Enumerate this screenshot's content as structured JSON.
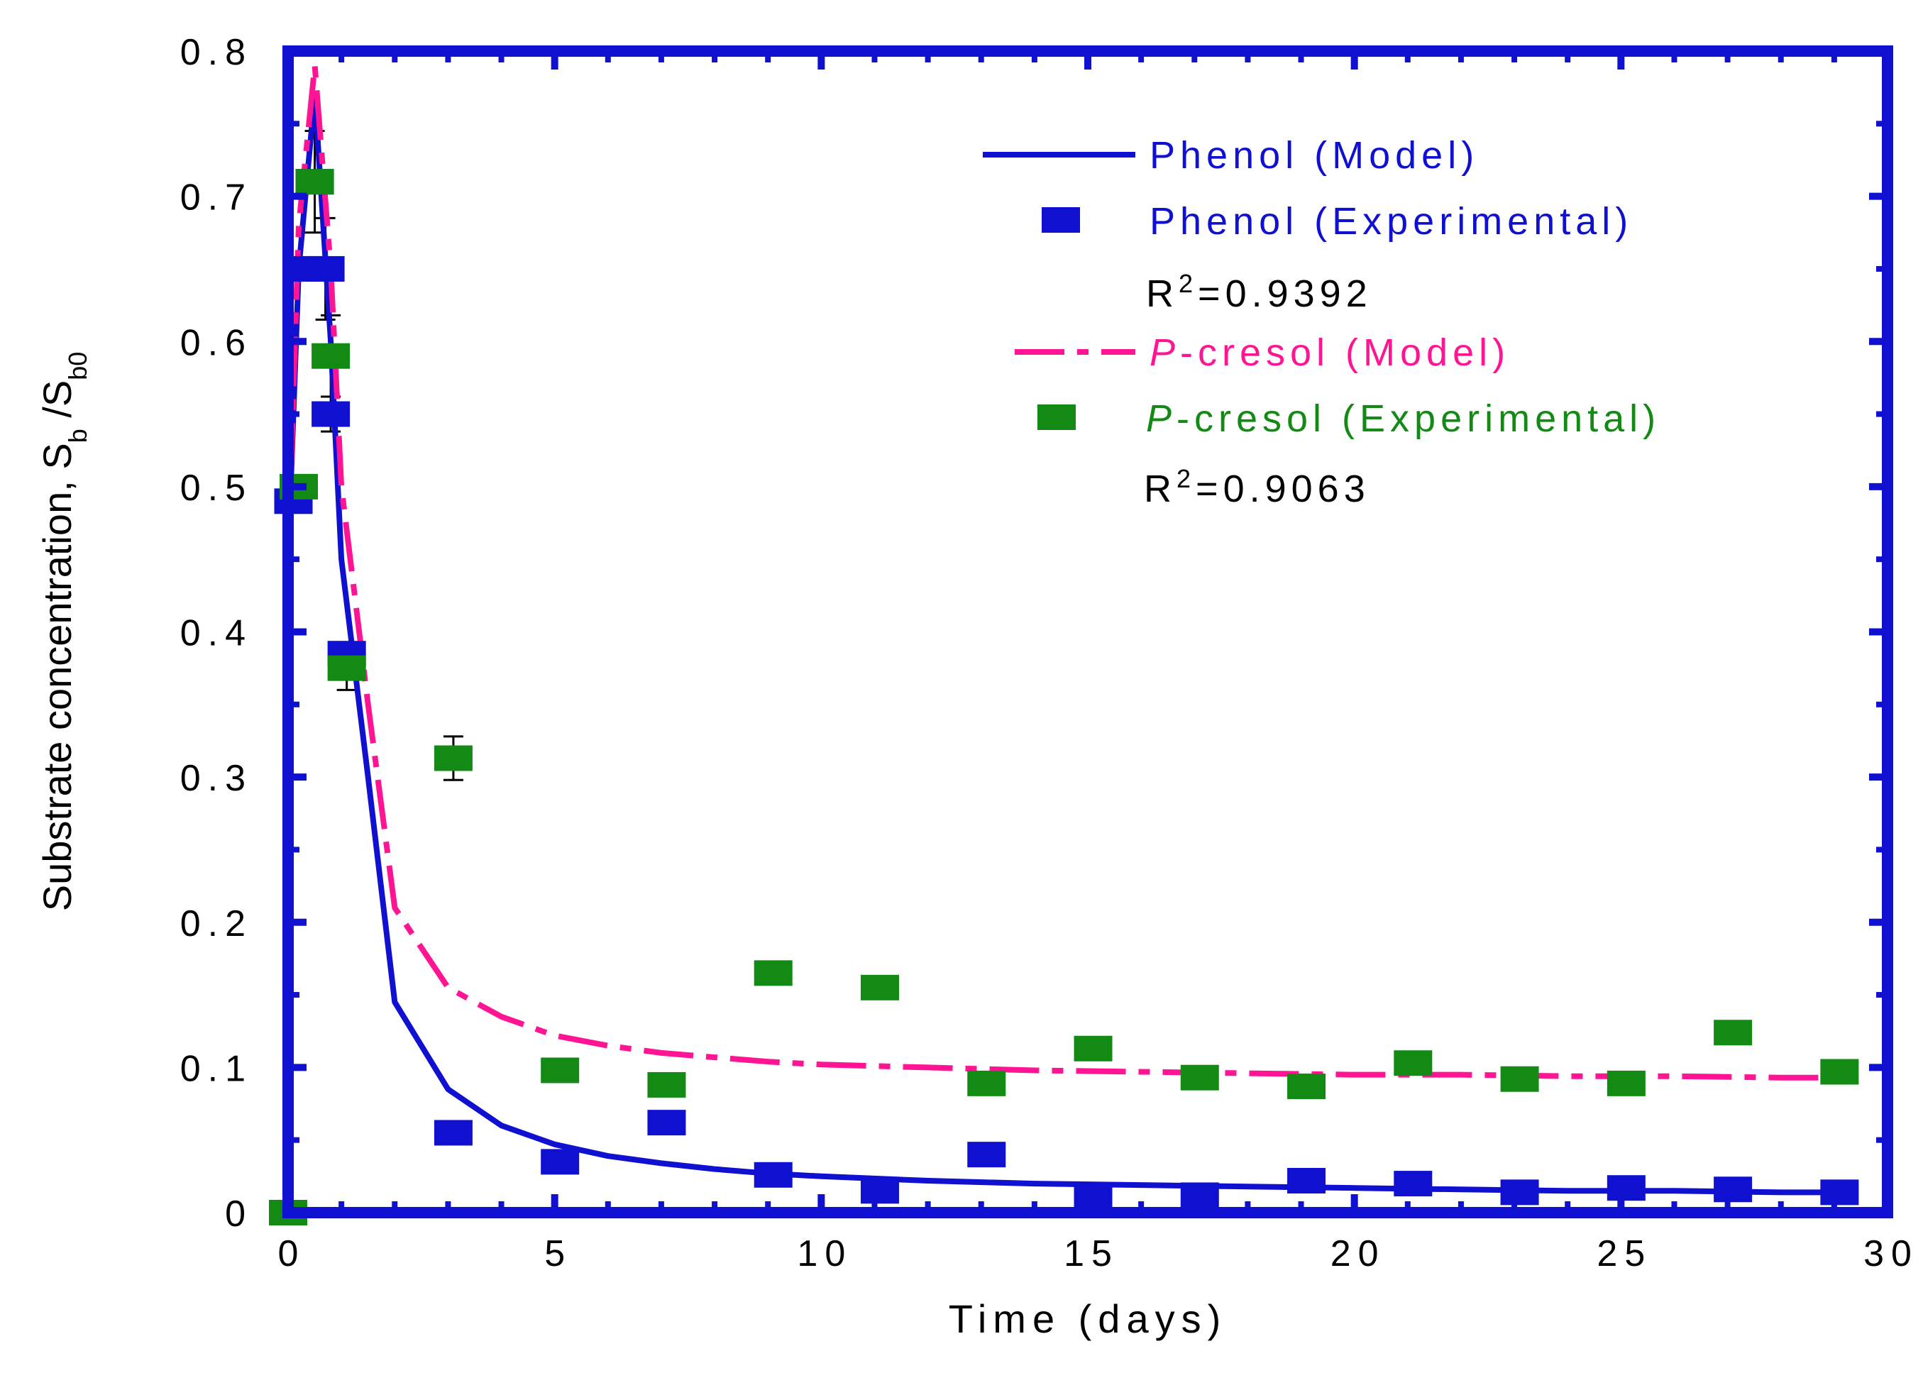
{
  "chart_data": {
    "type": "line",
    "title": "",
    "xlabel": "Time (days)",
    "ylabel": {
      "main": "Substrate concentration, S",
      "sub1": "b",
      "mid": " /S",
      "sub2": "b0"
    },
    "xlim": [
      0,
      30
    ],
    "ylim": [
      0,
      0.8
    ],
    "xticks": [
      0,
      5,
      10,
      15,
      20,
      25,
      30
    ],
    "yticks": [
      0,
      0.1,
      0.2,
      0.3,
      0.4,
      0.5,
      0.6,
      0.7,
      0.8
    ],
    "xtick_labels": [
      "0",
      "5",
      "10",
      "15",
      "20",
      "25",
      "30"
    ],
    "ytick_labels": [
      "0",
      "0.1",
      "0.2",
      "0.3",
      "0.4",
      "0.5",
      "0.6",
      "0.7",
      "0.8"
    ],
    "grid": false,
    "legend_position": "top-right",
    "series": [
      {
        "name": "Phenol (Model)",
        "label_main": "Phenol (Model)",
        "kind": "line",
        "color": "#1010d0",
        "dash": "solid",
        "x": [
          0,
          0.2,
          0.5,
          0.8,
          1,
          1.5,
          2,
          3,
          4,
          5,
          6,
          7,
          8,
          9,
          10,
          12,
          14,
          16,
          18,
          20,
          22,
          24,
          26,
          28,
          29
        ],
        "y": [
          0.45,
          0.65,
          0.77,
          0.6,
          0.45,
          0.3,
          0.145,
          0.085,
          0.06,
          0.047,
          0.039,
          0.034,
          0.03,
          0.027,
          0.025,
          0.022,
          0.02,
          0.019,
          0.018,
          0.017,
          0.016,
          0.015,
          0.015,
          0.014,
          0.014
        ]
      },
      {
        "name": "Phenol (Experimental)",
        "label_main": "Phenol (Experimental)",
        "kind": "marker",
        "color": "#1010d0",
        "x": [
          0.1,
          0.3,
          0.5,
          0.7,
          0.8,
          1.1,
          3.1,
          5.1,
          7.1,
          9.1,
          11.1,
          13.1,
          15.1,
          17.1,
          19.1,
          21.1,
          23.1,
          25.1,
          27.1,
          29.1
        ],
        "y": [
          0.49,
          0.65,
          0.71,
          0.65,
          0.55,
          0.385,
          0.055,
          0.035,
          0.062,
          0.026,
          0.015,
          0.04,
          0.01,
          0.012,
          0.022,
          0.02,
          0.014,
          0.017,
          0.016,
          0.014
        ]
      },
      {
        "name": "P-cresol (Model)",
        "label_prefix": "P",
        "label_main": "-cresol (Model)",
        "kind": "line",
        "color": "#ff1493",
        "dash": "dashdot",
        "x": [
          0,
          0.2,
          0.5,
          0.8,
          1,
          1.5,
          2,
          3,
          4,
          5,
          6,
          7,
          8,
          9,
          10,
          12,
          14,
          16,
          18,
          20,
          22,
          24,
          26,
          28,
          29
        ],
        "y": [
          0.45,
          0.68,
          0.79,
          0.65,
          0.5,
          0.35,
          0.21,
          0.155,
          0.135,
          0.122,
          0.115,
          0.11,
          0.107,
          0.104,
          0.102,
          0.1,
          0.098,
          0.097,
          0.096,
          0.095,
          0.095,
          0.094,
          0.094,
          0.093,
          0.093
        ]
      },
      {
        "name": "P-cresol (Experimental)",
        "label_prefix": "P",
        "label_main": "-cresol (Experimental)",
        "kind": "marker",
        "color": "#138a13",
        "x": [
          0,
          0.2,
          0.5,
          0.8,
          1.1,
          3.1,
          5.1,
          7.1,
          9.1,
          11.1,
          13.1,
          15.1,
          17.1,
          19.1,
          21.1,
          23.1,
          25.1,
          27.1,
          29.1
        ],
        "y": [
          0,
          0.5,
          0.71,
          0.59,
          0.375,
          0.313,
          0.098,
          0.088,
          0.165,
          0.155,
          0.089,
          0.113,
          0.093,
          0.087,
          0.103,
          0.092,
          0.089,
          0.124,
          0.097
        ]
      }
    ],
    "error_bars": [
      {
        "x": 0.5,
        "y": 0.71,
        "err": 0.035
      },
      {
        "x": 0.7,
        "y": 0.65,
        "err": 0.035
      },
      {
        "x": 0.8,
        "y": 0.59,
        "err": 0.028
      },
      {
        "x": 0.8,
        "y": 0.55,
        "err": 0.012
      },
      {
        "x": 1.1,
        "y": 0.375,
        "err": 0.015
      },
      {
        "x": 3.1,
        "y": 0.313,
        "err": 0.015
      }
    ],
    "annotations": [
      {
        "prefix": "R",
        "sup": "2",
        "rest": "=0.9392"
      },
      {
        "prefix": "R",
        "sup": "2",
        "rest": "=0.9063"
      }
    ]
  }
}
